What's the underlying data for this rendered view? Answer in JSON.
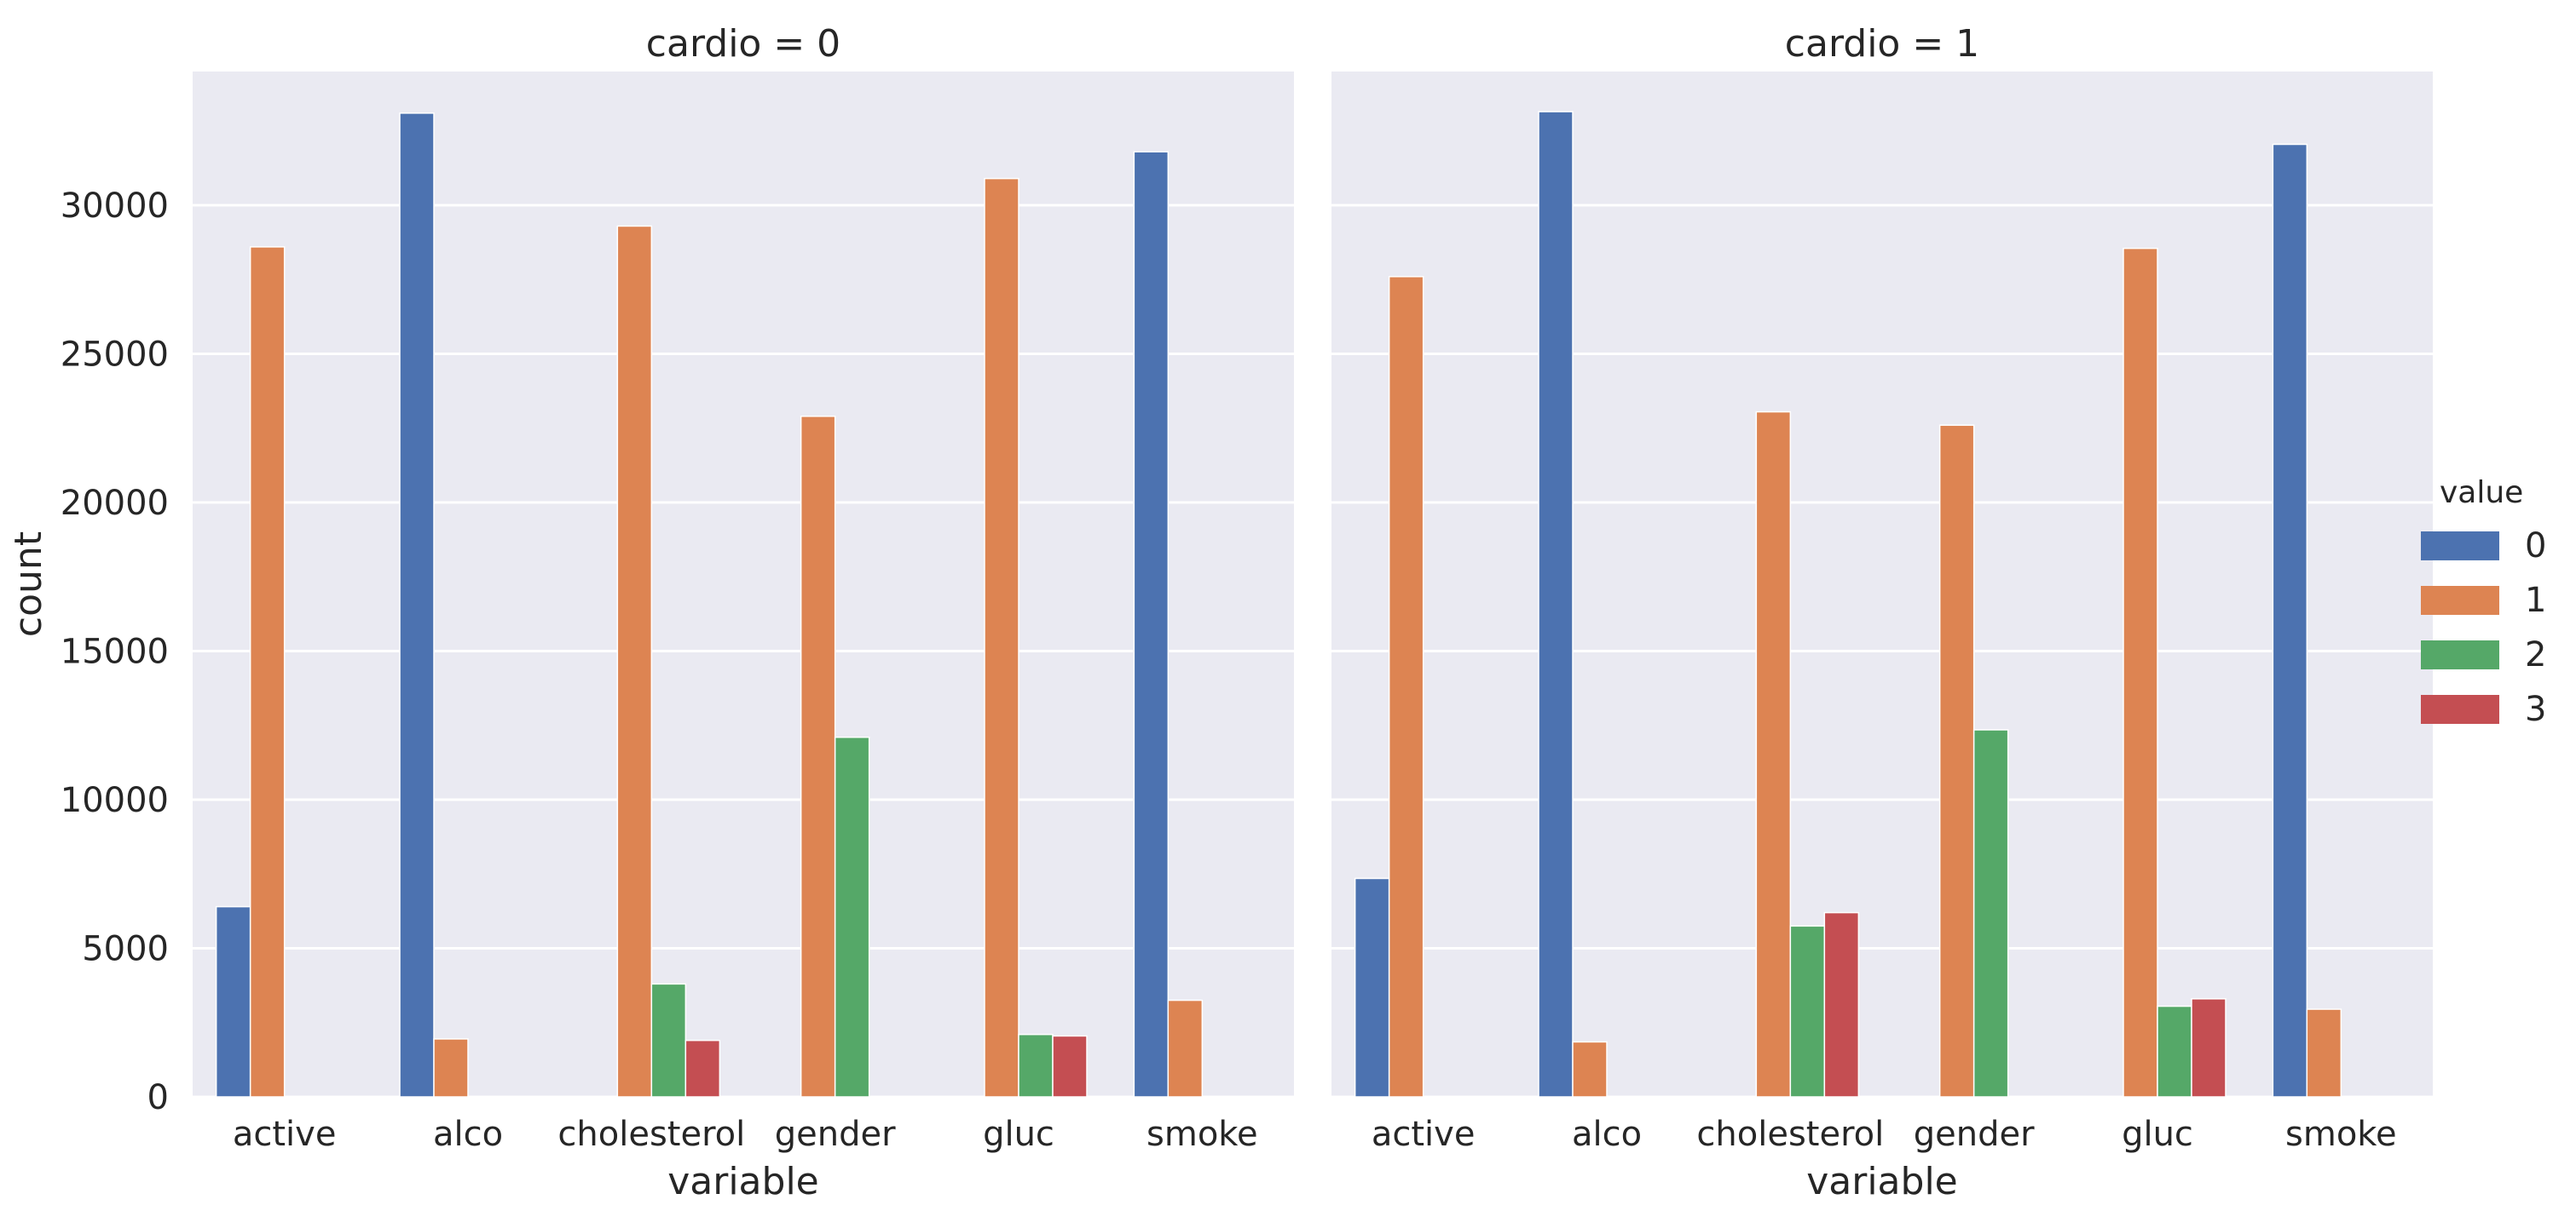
{
  "chart_data": {
    "type": "bar",
    "ylabel": "count",
    "xlabel": "variable",
    "ylim": [
      0,
      34500
    ],
    "yticks": [
      0,
      5000,
      10000,
      15000,
      20000,
      25000,
      30000
    ],
    "ytick_labels": [
      "0",
      "5000",
      "10000",
      "15000",
      "20000",
      "25000",
      "30000"
    ],
    "grid": true,
    "categories": [
      "active",
      "alco",
      "cholesterol",
      "gender",
      "gluc",
      "smoke"
    ],
    "legend": {
      "title": "value",
      "placement": "right",
      "entries": [
        {
          "label": "0",
          "color": "#4c72b0"
        },
        {
          "label": "1",
          "color": "#dd8452"
        },
        {
          "label": "2",
          "color": "#55a868"
        },
        {
          "label": "3",
          "color": "#c44e52"
        }
      ]
    },
    "panels": [
      {
        "title": "cardio = 0",
        "series": [
          {
            "name": "0",
            "values": [
              6400,
              33100,
              0,
              0,
              0,
              31800
            ]
          },
          {
            "name": "1",
            "values": [
              28600,
              1950,
              29300,
              22900,
              30900,
              3250
            ]
          },
          {
            "name": "2",
            "values": [
              0,
              0,
              3800,
              12100,
              2100,
              0
            ]
          },
          {
            "name": "3",
            "values": [
              0,
              0,
              1900,
              0,
              2050,
              0
            ]
          }
        ]
      },
      {
        "title": "cardio = 1",
        "series": [
          {
            "name": "0",
            "values": [
              7350,
              33150,
              0,
              0,
              0,
              32050
            ]
          },
          {
            "name": "1",
            "values": [
              27600,
              1850,
              23050,
              22600,
              28550,
              2950
            ]
          },
          {
            "name": "2",
            "values": [
              0,
              0,
              5750,
              12350,
              3050,
              0
            ]
          },
          {
            "name": "3",
            "values": [
              0,
              0,
              6200,
              0,
              3300,
              0
            ]
          }
        ]
      }
    ]
  }
}
